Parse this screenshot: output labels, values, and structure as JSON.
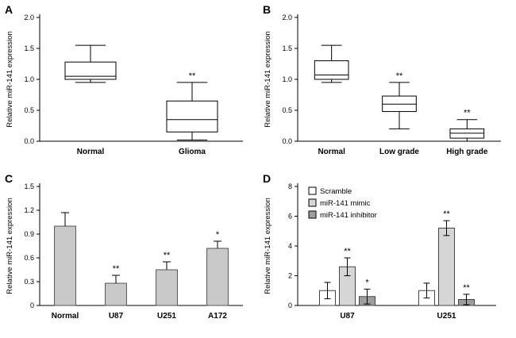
{
  "figure": {
    "background": "#ffffff"
  },
  "chart_data": [
    {
      "panel_label": "A",
      "type": "box",
      "title": "",
      "ylabel": "Relative miR-141 expression",
      "ylim": [
        0,
        2.0
      ],
      "yticks": [
        0,
        0.5,
        1.0,
        1.5,
        2.0
      ],
      "ytick_labels": [
        "0.0",
        "0.5",
        "1.0",
        "1.5",
        "2.0"
      ],
      "grid": false,
      "categories": [
        "Normal",
        "Glioma"
      ],
      "boxes": [
        {
          "low": 0.95,
          "q1": 1.0,
          "median": 1.05,
          "q3": 1.28,
          "high": 1.55,
          "annotation": ""
        },
        {
          "low": 0.02,
          "q1": 0.15,
          "median": 0.35,
          "q3": 0.65,
          "high": 0.95,
          "annotation": "**"
        }
      ]
    },
    {
      "panel_label": "B",
      "type": "box",
      "title": "",
      "ylabel": "Relative miR-141 expression",
      "ylim": [
        0,
        2.0
      ],
      "yticks": [
        0,
        0.5,
        1.0,
        1.5,
        2.0
      ],
      "ytick_labels": [
        "0.0",
        "0.5",
        "1.0",
        "1.5",
        "2.0"
      ],
      "grid": false,
      "categories": [
        "Normal",
        "Low grade",
        "High grade"
      ],
      "boxes": [
        {
          "low": 0.95,
          "q1": 1.0,
          "median": 1.07,
          "q3": 1.3,
          "high": 1.55,
          "annotation": ""
        },
        {
          "low": 0.2,
          "q1": 0.48,
          "median": 0.6,
          "q3": 0.73,
          "high": 0.95,
          "annotation": "**"
        },
        {
          "low": 0.0,
          "q1": 0.05,
          "median": 0.13,
          "q3": 0.2,
          "high": 0.35,
          "annotation": "**"
        }
      ]
    },
    {
      "panel_label": "C",
      "type": "bar",
      "title": "",
      "ylabel": "Relative miR-141 expression",
      "ylim": [
        0,
        1.5
      ],
      "yticks": [
        0,
        0.3,
        0.6,
        0.9,
        1.2,
        1.5
      ],
      "ytick_labels": [
        "0",
        "0.3",
        "0.6",
        "0.9",
        "1.2",
        "1.5"
      ],
      "grid": false,
      "categories": [
        "Normal",
        "U87",
        "U251",
        "A172"
      ],
      "values": [
        1.0,
        0.28,
        0.45,
        0.72
      ],
      "errors": [
        0.17,
        0.1,
        0.1,
        0.09
      ],
      "annotations": [
        "",
        "**",
        "**",
        "*"
      ],
      "bar_color": "#c9c9c9"
    },
    {
      "panel_label": "D",
      "type": "grouped_bar",
      "title": "",
      "ylabel": "Relative miR-141 expression",
      "ylim": [
        0,
        8
      ],
      "yticks": [
        0,
        2,
        4,
        6,
        8
      ],
      "ytick_labels": [
        "0",
        "2",
        "4",
        "6",
        "8"
      ],
      "grid": false,
      "legend_position": "top-left-inside",
      "categories": [
        "U87",
        "U251"
      ],
      "series": [
        {
          "name": "Scramble",
          "color": "#ffffff",
          "values": [
            1.0,
            1.0
          ],
          "errors": [
            0.55,
            0.5
          ],
          "annotations": [
            "",
            ""
          ]
        },
        {
          "name": "miR-141 mimic",
          "color": "#d6d6d6",
          "values": [
            2.6,
            5.2
          ],
          "errors": [
            0.6,
            0.5
          ],
          "annotations": [
            "**",
            "**"
          ]
        },
        {
          "name": "miR-141 inhibitor",
          "color": "#9e9e9e",
          "values": [
            0.6,
            0.4
          ],
          "errors": [
            0.5,
            0.35
          ],
          "annotations": [
            "*",
            "**"
          ]
        }
      ]
    }
  ]
}
